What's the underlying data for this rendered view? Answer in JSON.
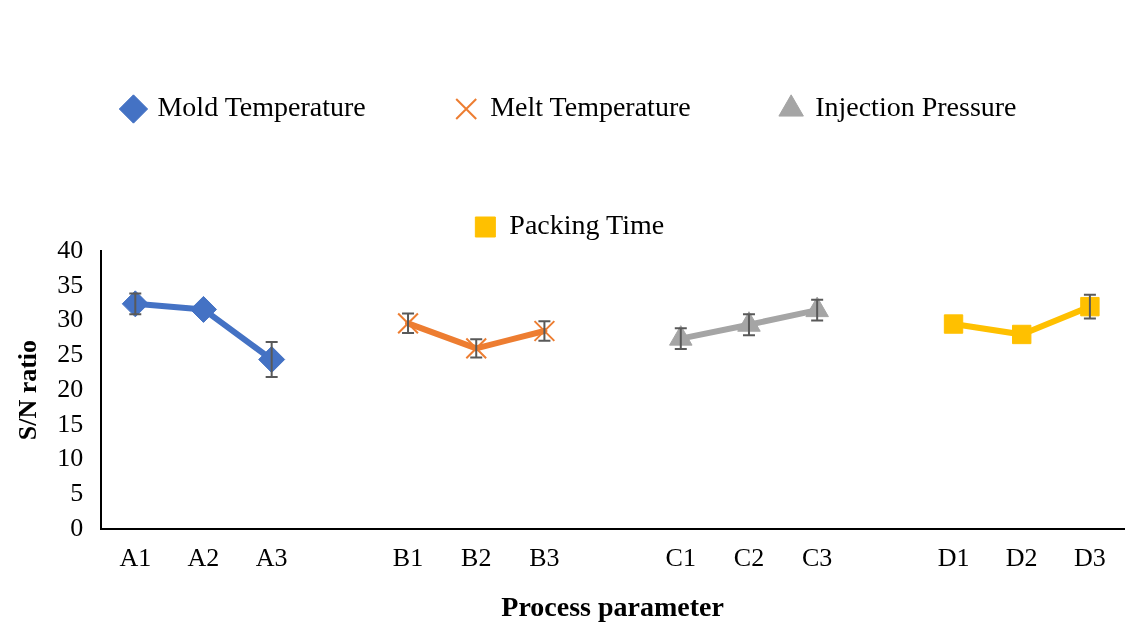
{
  "chart_data": {
    "type": "line",
    "xlabel": "Process parameter",
    "ylabel": "S/N ratio",
    "categories": [
      "A1",
      "A2",
      "A3",
      null,
      "B1",
      "B2",
      "B3",
      null,
      "C1",
      "C2",
      "C3",
      null,
      "D1",
      "D2",
      "D3"
    ],
    "series": [
      {
        "name": "Mold Temperature",
        "color": "#4472c4",
        "marker": "diamond",
        "values": [
          32.4,
          31.6,
          24.4,
          null,
          null,
          null,
          null,
          null,
          null,
          null,
          null,
          null,
          null,
          null,
          null
        ],
        "errors": [
          1.5,
          null,
          2.5,
          null,
          null,
          null,
          null,
          null,
          null,
          null,
          null,
          null,
          null,
          null,
          null
        ]
      },
      {
        "name": "Melt Temperature",
        "color": "#ed7d31",
        "marker": "cross",
        "values": [
          null,
          null,
          null,
          null,
          29.6,
          26.0,
          28.5,
          null,
          null,
          null,
          null,
          null,
          null,
          null,
          null
        ],
        "errors": [
          null,
          null,
          null,
          null,
          1.4,
          1.3,
          1.4,
          null,
          null,
          null,
          null,
          null,
          null,
          null,
          null
        ]
      },
      {
        "name": "Injection Pressure",
        "color": "#a5a5a5",
        "marker": "triangle",
        "values": [
          null,
          null,
          null,
          null,
          null,
          null,
          null,
          null,
          27.4,
          29.4,
          31.5,
          null,
          null,
          null,
          null
        ],
        "errors": [
          null,
          null,
          null,
          null,
          null,
          null,
          null,
          null,
          1.5,
          1.5,
          1.5,
          null,
          null,
          null,
          null
        ]
      },
      {
        "name": "Packing Time",
        "color": "#ffc000",
        "marker": "square",
        "values": [
          null,
          null,
          null,
          null,
          null,
          null,
          null,
          null,
          null,
          null,
          null,
          null,
          29.5,
          28.0,
          32.0
        ],
        "errors": [
          null,
          null,
          null,
          null,
          null,
          null,
          null,
          null,
          null,
          null,
          null,
          null,
          null,
          null,
          1.7
        ]
      }
    ],
    "ylim": [
      0,
      40
    ],
    "yticks": [
      0,
      5,
      10,
      15,
      20,
      25,
      30,
      35,
      40
    ],
    "grid": false,
    "legend": "top"
  }
}
